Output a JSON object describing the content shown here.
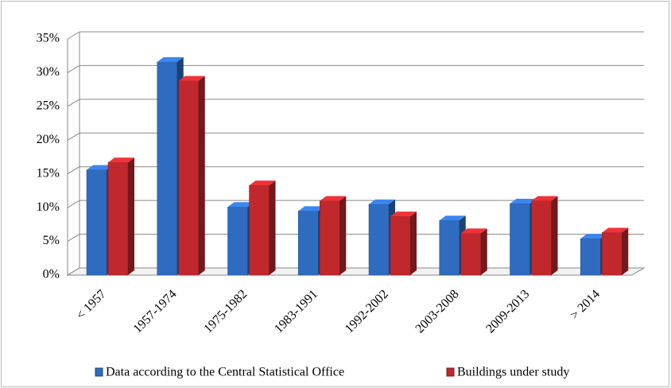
{
  "chart_data": {
    "type": "bar3d",
    "categories": [
      "< 1957",
      "1957-1974",
      "1975-1982",
      "1983-1991",
      "1992-2002",
      "2003-2008",
      "2009-2013",
      "> 2014"
    ],
    "series": [
      {
        "name": "Data according to the Central Statistical Office",
        "color": "#2f6cc0",
        "values": [
          15.6,
          31.6,
          10.1,
          9.5,
          10.5,
          8.1,
          10.6,
          5.4
        ]
      },
      {
        "name": "Buildings under study",
        "color": "#c0282d",
        "values": [
          16.7,
          28.8,
          13.3,
          11.0,
          8.7,
          6.2,
          11.0,
          6.3
        ]
      }
    ],
    "ylim": [
      0,
      35
    ],
    "yticks": [
      {
        "value": 0,
        "label": "0%"
      },
      {
        "value": 5,
        "label": "5%"
      },
      {
        "value": 10,
        "label": "10%"
      },
      {
        "value": 15,
        "label": "15%"
      },
      {
        "value": 20,
        "label": "20%"
      },
      {
        "value": 25,
        "label": "25%"
      },
      {
        "value": 30,
        "label": "30%"
      },
      {
        "value": 35,
        "label": "35%"
      }
    ],
    "grid": true,
    "legend": "bottom"
  }
}
